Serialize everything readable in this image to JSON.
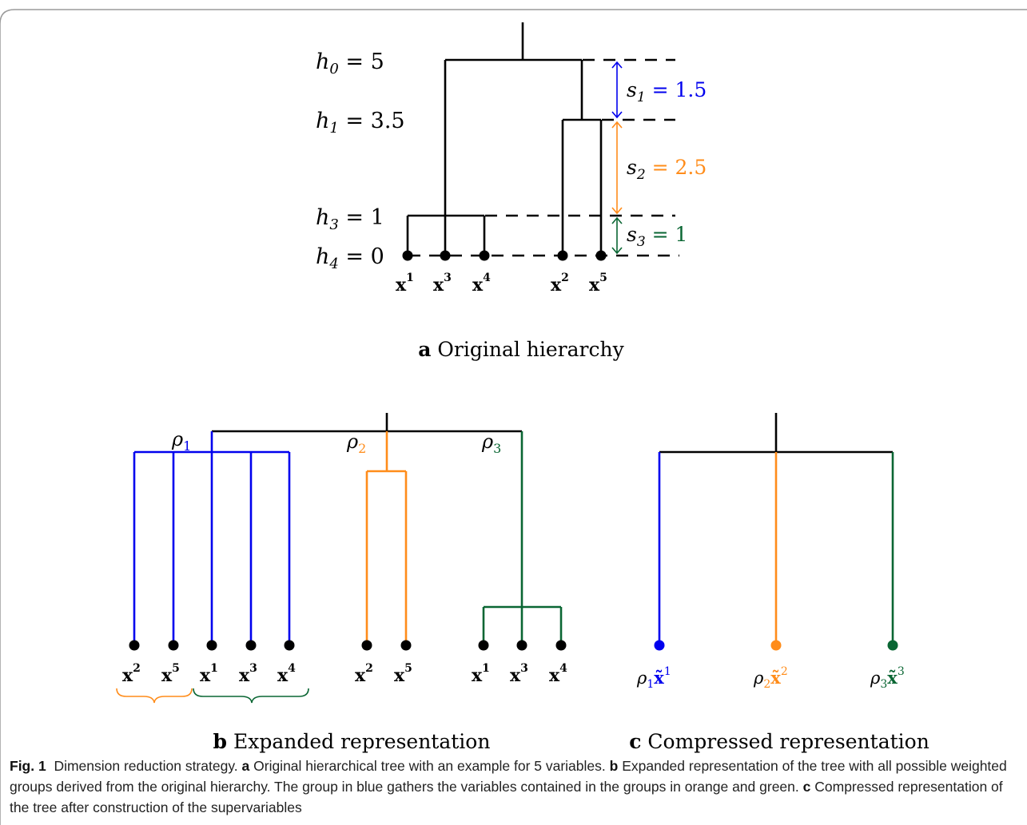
{
  "colors": {
    "black": "#000000",
    "blue": "#0000ee",
    "orange": "#ff8c1a",
    "green": "#0a6633",
    "frame": "#9a9a9a"
  },
  "panel_a": {
    "levels": [
      {
        "var": "h",
        "sub": "0",
        "value": "5"
      },
      {
        "var": "h",
        "sub": "1",
        "value": "3.5"
      },
      {
        "var": "h",
        "sub": "3",
        "value": "1"
      },
      {
        "var": "h",
        "sub": "4",
        "value": "0"
      }
    ],
    "steps": [
      {
        "var": "s",
        "sub": "1",
        "value": "1.5",
        "color": "blue"
      },
      {
        "var": "s",
        "sub": "2",
        "value": "2.5",
        "color": "orange"
      },
      {
        "var": "s",
        "sub": "3",
        "value": "1",
        "color": "green"
      }
    ],
    "leaves": [
      {
        "base": "x",
        "sup": "1"
      },
      {
        "base": "x",
        "sup": "3"
      },
      {
        "base": "x",
        "sup": "4"
      },
      {
        "base": "x",
        "sup": "2"
      },
      {
        "base": "x",
        "sup": "5"
      }
    ],
    "label_letter": "a",
    "label_text": "Original hierarchy"
  },
  "panel_b": {
    "groups": [
      {
        "name": "ρ",
        "sub": "1",
        "color": "blue"
      },
      {
        "name": "ρ",
        "sub": "2",
        "color": "orange"
      },
      {
        "name": "ρ",
        "sub": "3",
        "color": "green"
      }
    ],
    "leaves": [
      {
        "base": "x",
        "sup": "2"
      },
      {
        "base": "x",
        "sup": "5"
      },
      {
        "base": "x",
        "sup": "1"
      },
      {
        "base": "x",
        "sup": "3"
      },
      {
        "base": "x",
        "sup": "4"
      },
      {
        "base": "x",
        "sup": "2"
      },
      {
        "base": "x",
        "sup": "5"
      },
      {
        "base": "x",
        "sup": "1"
      },
      {
        "base": "x",
        "sup": "3"
      },
      {
        "base": "x",
        "sup": "4"
      }
    ],
    "label_letter": "b",
    "label_text": "Expanded representation"
  },
  "panel_c": {
    "leaves": [
      {
        "name": "ρ",
        "sub": "1",
        "base": "x̃",
        "sup": "1",
        "color": "blue"
      },
      {
        "name": "ρ",
        "sub": "2",
        "base": "x̃",
        "sup": "2",
        "color": "orange"
      },
      {
        "name": "ρ",
        "sub": "3",
        "base": "x̃",
        "sup": "3",
        "color": "green"
      }
    ],
    "label_letter": "c",
    "label_text": "Compressed representation"
  },
  "caption": {
    "fig_label": "Fig. 1",
    "title": "Dimension reduction strategy.",
    "a_letter": "a",
    "a_text": "Original hierarchical tree with an example for 5 variables.",
    "b_letter": "b",
    "b_text": "Expanded representation of the tree with all possible weighted groups derived from the original hierarchy. The group in blue gathers the variables contained in the groups in orange and green.",
    "c_letter": "c",
    "c_text": "Compressed representation of the tree after construction of the supervariables"
  }
}
